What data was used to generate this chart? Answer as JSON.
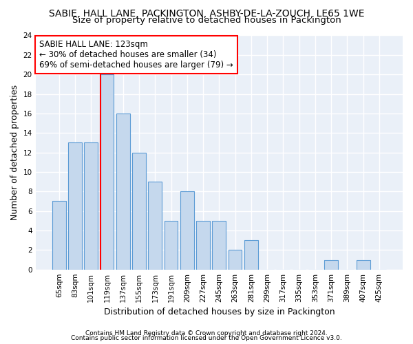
{
  "title": "SABIE, HALL LANE, PACKINGTON, ASHBY-DE-LA-ZOUCH, LE65 1WE",
  "subtitle": "Size of property relative to detached houses in Packington",
  "xlabel": "Distribution of detached houses by size in Packington",
  "ylabel": "Number of detached properties",
  "categories": [
    "65sqm",
    "83sqm",
    "101sqm",
    "119sqm",
    "137sqm",
    "155sqm",
    "173sqm",
    "191sqm",
    "209sqm",
    "227sqm",
    "245sqm",
    "263sqm",
    "281sqm",
    "299sqm",
    "317sqm",
    "335sqm",
    "353sqm",
    "371sqm",
    "389sqm",
    "407sqm",
    "425sqm"
  ],
  "values": [
    7,
    13,
    13,
    20,
    16,
    12,
    9,
    5,
    8,
    5,
    5,
    2,
    3,
    0,
    0,
    0,
    0,
    1,
    0,
    1,
    0
  ],
  "bar_color": "#c5d8ed",
  "bar_edge_color": "#5b9bd5",
  "vline_index": 3,
  "vline_color": "red",
  "annotation_text": "SABIE HALL LANE: 123sqm\n← 30% of detached houses are smaller (34)\n69% of semi-detached houses are larger (79) →",
  "annotation_box_color": "white",
  "annotation_box_edge": "red",
  "ylim": [
    0,
    24
  ],
  "yticks": [
    0,
    2,
    4,
    6,
    8,
    10,
    12,
    14,
    16,
    18,
    20,
    22,
    24
  ],
  "footer1": "Contains HM Land Registry data © Crown copyright and database right 2024.",
  "footer2": "Contains public sector information licensed under the Open Government Licence v3.0.",
  "background_color": "#eaf0f8",
  "title_fontsize": 10,
  "subtitle_fontsize": 9.5,
  "xlabel_fontsize": 9,
  "ylabel_fontsize": 9
}
